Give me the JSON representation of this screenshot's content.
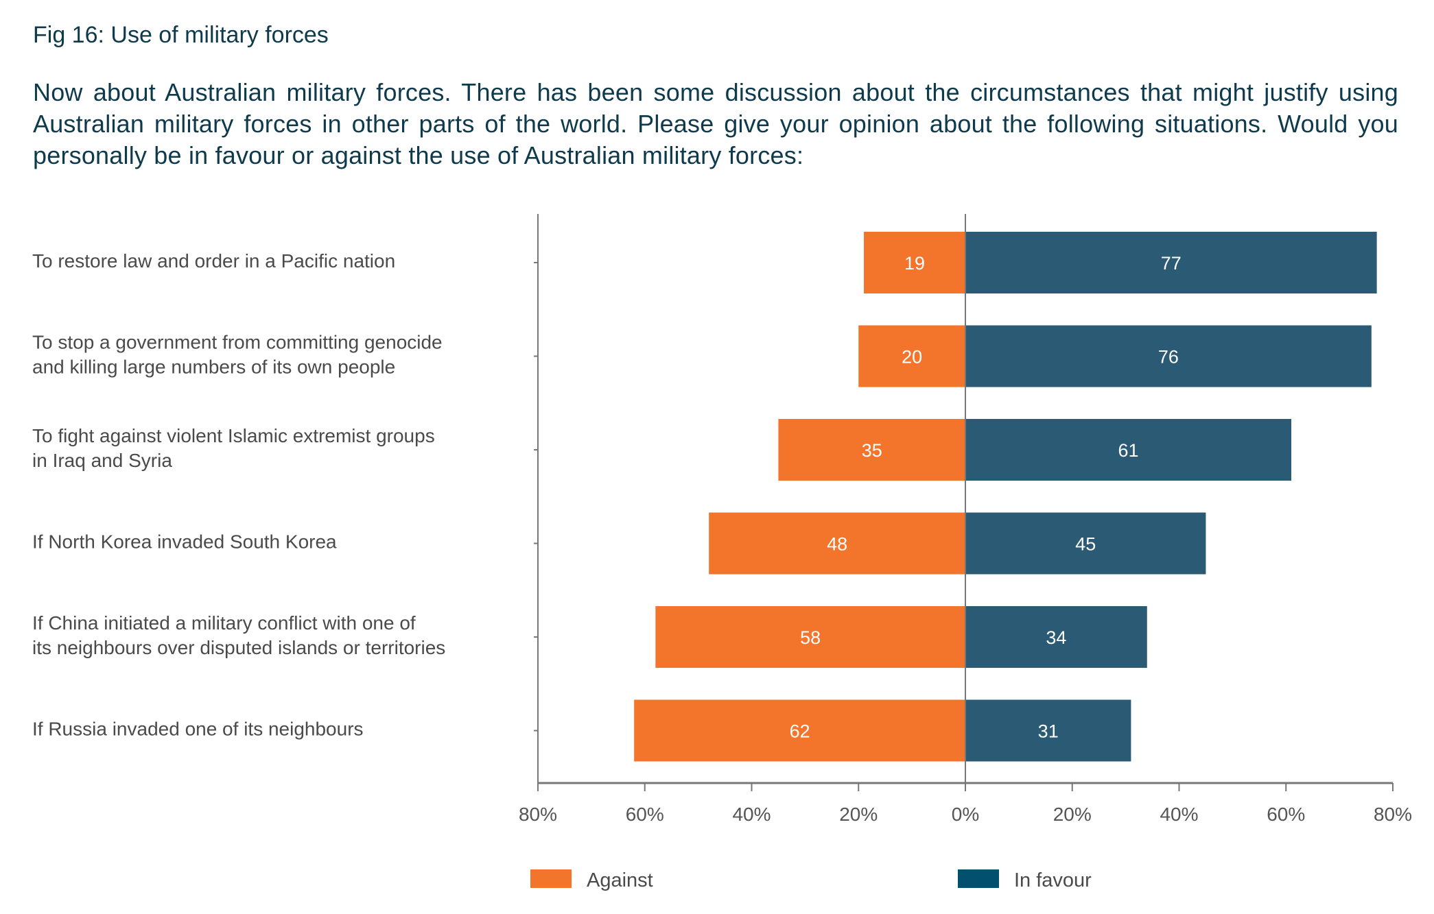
{
  "figure": {
    "title": "Fig 16: Use of military forces",
    "question": "Now about Australian military forces. There has been some discussion about the circumstances that might justify using Australian military forces in other parts of the world. Please give your opinion about the following situations. Would you personally be in favour or against the use of Australian military forces:"
  },
  "colors": {
    "against": "#F3752B",
    "in_favour": "#2B5B74",
    "in_favour_legend": "#00506E",
    "axis": "#777777",
    "title_text": "#0E3A4C"
  },
  "chart_data": {
    "type": "bar",
    "orientation": "horizontal-diverging",
    "title": "Fig 16: Use of military forces",
    "categories": [
      [
        "To restore law and order in a Pacific nation"
      ],
      [
        "To stop a government from committing genocide",
        "and killing large numbers of its own people"
      ],
      [
        "To fight against violent Islamic extremist groups",
        "in Iraq and Syria"
      ],
      [
        "If North Korea invaded South Korea"
      ],
      [
        "If China initiated a military conflict with one of",
        "its neighbours over disputed islands or territories"
      ],
      [
        "If Russia invaded one of its neighbours"
      ]
    ],
    "series": [
      {
        "name": "Against",
        "values": [
          19,
          20,
          35,
          48,
          58,
          62
        ],
        "direction": "left"
      },
      {
        "name": "In favour",
        "values": [
          77,
          76,
          61,
          45,
          34,
          31
        ],
        "direction": "right"
      }
    ],
    "xlim": [
      -80,
      80
    ],
    "xticks": [
      -80,
      -60,
      -40,
      -20,
      0,
      20,
      40,
      60,
      80
    ],
    "xtick_labels": [
      "80%",
      "60%",
      "40%",
      "20%",
      "0%",
      "20%",
      "40%",
      "60%",
      "80%"
    ],
    "xlabel": "",
    "ylabel": "",
    "grid": false,
    "legend": {
      "entries": [
        "Against",
        "In favour"
      ],
      "placement": "bottom"
    }
  }
}
